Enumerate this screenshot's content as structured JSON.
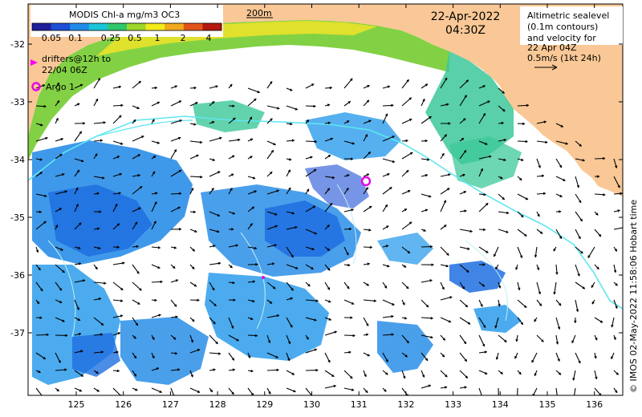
{
  "colorbar": {
    "title": "MODIS Chl-a mg/m3 OC3",
    "ticks": [
      "0.05",
      "0.1",
      "0.25",
      "0.5",
      "1",
      "2",
      "4"
    ],
    "colors": [
      "#1f1e9a",
      "#1c4fd6",
      "#1f8be8",
      "#19c4d6",
      "#2fc76b",
      "#9dd62a",
      "#f3ea1c",
      "#f0a91c",
      "#e2541a",
      "#b3180f"
    ]
  },
  "scale_bar": {
    "label": "200m"
  },
  "date": {
    "day": "22-Apr-2022",
    "time": "04:30Z"
  },
  "legend": {
    "drifters": "drifters@12h to",
    "drifters_line2": "22/04 06Z",
    "argo": "Argo 1",
    "drifter_color": "#ff00ff",
    "argo_color": "#e800e8"
  },
  "info_box": {
    "line1": "Altimetric sealevel",
    "line2": "(0.1m contours)",
    "line3": "and velocity for",
    "line4": "22 Apr 04Z",
    "line5": "0.5m/s (1kt 24h)"
  },
  "axes": {
    "x_ticks": [
      "125",
      "126",
      "127",
      "128",
      "129",
      "130",
      "131",
      "132",
      "133",
      "134",
      "135",
      "136"
    ],
    "y_ticks": [
      "-32",
      "-33",
      "-34",
      "-35",
      "-36",
      "-37"
    ]
  },
  "credit": "© IMOS 02-May-2022 11:58:06 Hobart time",
  "map_colors": {
    "land": "#f9c896",
    "contour": "#5ee6f0",
    "arrows": "#000000"
  }
}
